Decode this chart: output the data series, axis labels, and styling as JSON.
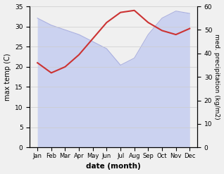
{
  "months": [
    "Jan",
    "Feb",
    "Mar",
    "Apr",
    "May",
    "Jun",
    "Jul",
    "Aug",
    "Sep",
    "Oct",
    "Nov",
    "Dec"
  ],
  "temp_max": [
    21.0,
    18.5,
    20.0,
    23.0,
    27.0,
    31.0,
    33.5,
    34.0,
    31.0,
    29.0,
    28.0,
    29.5
  ],
  "precipitation": [
    55,
    52,
    50,
    48,
    45,
    42,
    35,
    38,
    48,
    55,
    58,
    57
  ],
  "temp_color": "#cc3333",
  "precip_fill_color": "#c5cdf0",
  "precip_edge_color": "#aab0e0",
  "ylabel_left": "max temp (C)",
  "ylabel_right": "med. precipitation (kg/m2)",
  "xlabel": "date (month)",
  "ylim_left": [
    0,
    35
  ],
  "ylim_right": [
    0,
    60
  ],
  "yticks_left": [
    0,
    5,
    10,
    15,
    20,
    25,
    30,
    35
  ],
  "yticks_right": [
    0,
    10,
    20,
    30,
    40,
    50,
    60
  ],
  "bg_color": "#f0f0f0",
  "grid_color": "#cccccc"
}
